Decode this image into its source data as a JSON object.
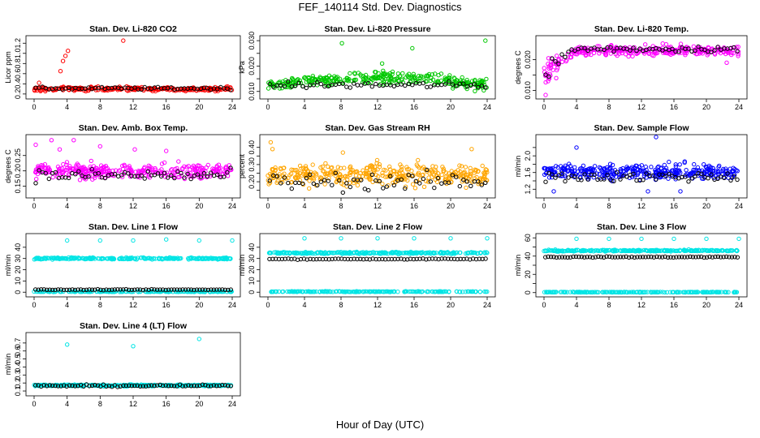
{
  "figure": {
    "title": "FEF_140114  Std. Dev. Diagnostics",
    "xlabel": "Hour of Day (UTC)"
  },
  "chart_data": [
    {
      "type": "scatter",
      "title": "Stan. Dev. Li-820 CO2",
      "ylabel": "Licor ppm",
      "xlim": [
        0,
        24
      ],
      "xticks": [
        0,
        4,
        8,
        12,
        16,
        20,
        24
      ],
      "ylim": [
        0.15,
        1.3
      ],
      "yticks": [
        0.2,
        0.4,
        0.6,
        0.8,
        1.0,
        1.2
      ],
      "ytick_labels": [
        "0.2",
        "0.4",
        "0.6",
        "0.8",
        "1.0",
        "1.2"
      ],
      "series": [
        {
          "color": "#ff0000",
          "baseline": 0.3,
          "spread": 0.04,
          "count": 260,
          "outliers": [
            [
              3.2,
              0.65
            ],
            [
              3.5,
              0.85
            ],
            [
              3.8,
              0.95
            ],
            [
              4.1,
              1.05
            ],
            [
              10.8,
              1.25
            ],
            [
              0.6,
              0.42
            ]
          ]
        },
        {
          "color": "#000000",
          "baseline": 0.31,
          "spread": 0.025,
          "count": 60,
          "outliers": []
        }
      ]
    },
    {
      "type": "scatter",
      "title": "Stan. Dev. Li-820 Pressure",
      "ylabel": "kPa",
      "xlim": [
        0,
        24
      ],
      "xticks": [
        0,
        4,
        8,
        12,
        16,
        20,
        24
      ],
      "ylim": [
        0.008,
        0.031
      ],
      "yticks": [
        0.01,
        0.015,
        0.02,
        0.025,
        0.03
      ],
      "ytick_labels": [
        "0.010",
        "",
        "0.020",
        "",
        "0.030"
      ],
      "series": [
        {
          "color": "#00c800",
          "baseline": 0.0125,
          "spread": 0.0022,
          "count": 320,
          "hump": 0.0035,
          "outliers": [
            [
              8.1,
              0.029
            ],
            [
              15.8,
              0.027
            ],
            [
              23.8,
              0.03
            ],
            [
              12.5,
              0.021
            ]
          ]
        },
        {
          "color": "#000000",
          "baseline": 0.0125,
          "spread": 0.0012,
          "count": 60,
          "outliers": []
        }
      ]
    },
    {
      "type": "scatter",
      "title": "Stan. Dev. Li-820 Temp.",
      "ylabel": "degrees C",
      "xlim": [
        0,
        24
      ],
      "xticks": [
        0,
        4,
        8,
        12,
        16,
        20,
        24
      ],
      "ylim": [
        0.008,
        0.027
      ],
      "yticks": [
        0.01,
        0.015,
        0.02
      ],
      "ytick_labels": [
        "0.010",
        "",
        "0.020"
      ],
      "series": [
        {
          "color": "#ff00ff",
          "baseline": 0.023,
          "spread": 0.0015,
          "count": 320,
          "rise": true,
          "outliers": [
            [
              0.2,
              0.0085
            ],
            [
              0.5,
              0.013
            ],
            [
              1.5,
              0.014
            ],
            [
              22.5,
              0.019
            ]
          ]
        },
        {
          "color": "#000000",
          "baseline": 0.0235,
          "spread": 0.001,
          "count": 60,
          "rise": true,
          "outliers": []
        }
      ]
    },
    {
      "type": "scatter",
      "title": "Stan. Dev. Amb. Box Temp.",
      "ylabel": "degrees C",
      "xlim": [
        0,
        24
      ],
      "xticks": [
        0,
        4,
        8,
        12,
        16,
        20,
        24
      ],
      "ylim": [
        0.12,
        0.31
      ],
      "yticks": [
        0.15,
        0.2,
        0.25
      ],
      "ytick_labels": [
        "0.15",
        "0.20",
        "0.25"
      ],
      "series": [
        {
          "color": "#ff00ff",
          "baseline": 0.2,
          "spread": 0.022,
          "count": 320,
          "outliers": [
            [
              0.2,
              0.285
            ],
            [
              2.1,
              0.3
            ],
            [
              3.1,
              0.27
            ],
            [
              4.8,
              0.3
            ],
            [
              8.0,
              0.28
            ],
            [
              12.2,
              0.27
            ],
            [
              16.0,
              0.265
            ]
          ]
        },
        {
          "color": "#000000",
          "baseline": 0.185,
          "spread": 0.02,
          "count": 60,
          "outliers": []
        }
      ]
    },
    {
      "type": "scatter",
      "title": "Stan. Dev. Gas Stream RH",
      "ylabel": "percent",
      "xlim": [
        0,
        24
      ],
      "xticks": [
        0,
        4,
        8,
        12,
        16,
        20,
        24
      ],
      "ylim": [
        0.12,
        0.46
      ],
      "yticks": [
        0.15,
        0.2,
        0.25,
        0.3,
        0.35,
        0.4
      ],
      "ytick_labels": [
        "",
        "0.20",
        "",
        "0.30",
        "",
        "0.40"
      ],
      "series": [
        {
          "color": "#ffa500",
          "baseline": 0.24,
          "spread": 0.06,
          "count": 380,
          "outliers": [
            [
              0.3,
              0.43
            ],
            [
              0.5,
              0.39
            ],
            [
              22.3,
              0.39
            ],
            [
              8.2,
              0.37
            ]
          ]
        },
        {
          "color": "#000000",
          "baseline": 0.2,
          "spread": 0.05,
          "count": 60,
          "outliers": []
        }
      ]
    },
    {
      "type": "scatter",
      "title": "Stan. Dev. Sample Flow",
      "ylabel": "ml/min",
      "xlim": [
        0,
        24
      ],
      "xticks": [
        0,
        4,
        8,
        12,
        16,
        20,
        24
      ],
      "ylim": [
        1.05,
        2.45
      ],
      "yticks": [
        1.2,
        1.4,
        1.6,
        1.8,
        2.0,
        2.2
      ],
      "ytick_labels": [
        "1.2",
        "",
        "1.6",
        "",
        "2.0",
        ""
      ],
      "series": [
        {
          "color": "#0000ff",
          "baseline": 1.62,
          "spread": 0.17,
          "count": 340,
          "outliers": [
            [
              4.0,
              2.2
            ],
            [
              13.8,
              2.45
            ],
            [
              1.2,
              1.15
            ],
            [
              12.8,
              1.15
            ],
            [
              16.8,
              1.15
            ]
          ]
        },
        {
          "color": "#000000",
          "baseline": 1.5,
          "spread": 0.12,
          "count": 60,
          "outliers": []
        }
      ]
    },
    {
      "type": "scatter",
      "title": "Stan. Dev. Line 1 Flow",
      "ylabel": "ml/min",
      "xlim": [
        0,
        24
      ],
      "xticks": [
        0,
        4,
        8,
        12,
        16,
        20,
        24
      ],
      "ylim": [
        -2,
        50
      ],
      "yticks": [
        0,
        10,
        20,
        30,
        40
      ],
      "ytick_labels": [
        "0",
        "10",
        "20",
        "30",
        "40"
      ],
      "series": [
        {
          "color": "#00e5e5",
          "baseline": 30,
          "spread": 0.8,
          "count": 260,
          "outliers": [
            [
              4.0,
              46
            ],
            [
              8.0,
              46
            ],
            [
              12.0,
              46
            ],
            [
              16.0,
              47
            ],
            [
              20.0,
              46
            ],
            [
              24.0,
              46
            ]
          ]
        },
        {
          "color": "#00e5e5",
          "baseline": 0.5,
          "spread": 0.3,
          "count": 200,
          "outliers": []
        },
        {
          "color": "#000000",
          "baseline": 2.2,
          "spread": 0.3,
          "count": 70,
          "outliers": []
        }
      ]
    },
    {
      "type": "scatter",
      "title": "Stan. Dev. Line 2 Flow",
      "ylabel": "ml/min",
      "xlim": [
        0,
        24
      ],
      "xticks": [
        0,
        4,
        8,
        12,
        16,
        20,
        24
      ],
      "ylim": [
        -2,
        50
      ],
      "yticks": [
        0,
        10,
        20,
        30,
        40
      ],
      "ytick_labels": [
        "0",
        "10",
        "20",
        "30",
        "40"
      ],
      "series": [
        {
          "color": "#00e5e5",
          "baseline": 35,
          "spread": 0.8,
          "count": 260,
          "outliers": [
            [
              4.0,
              48
            ],
            [
              8.0,
              48
            ],
            [
              12.0,
              48
            ],
            [
              16.0,
              48
            ],
            [
              20.0,
              48
            ],
            [
              24.0,
              48
            ]
          ]
        },
        {
          "color": "#00e5e5",
          "baseline": 0.5,
          "spread": 0.3,
          "count": 200,
          "outliers": []
        },
        {
          "color": "#000000",
          "baseline": 29.5,
          "spread": 0.4,
          "count": 70,
          "outliers": []
        }
      ]
    },
    {
      "type": "scatter",
      "title": "Stan. Dev. Line 3 Flow",
      "ylabel": "ml/min",
      "xlim": [
        0,
        24
      ],
      "xticks": [
        0,
        4,
        8,
        12,
        16,
        20,
        24
      ],
      "ylim": [
        -2,
        62
      ],
      "yticks": [
        0,
        10,
        20,
        30,
        40,
        50,
        60
      ],
      "ytick_labels": [
        "0",
        "",
        "20",
        "",
        "40",
        "",
        "60"
      ],
      "series": [
        {
          "color": "#00e5e5",
          "baseline": 46,
          "spread": 0.8,
          "count": 260,
          "outliers": [
            [
              4.0,
              59
            ],
            [
              8.0,
              59
            ],
            [
              12.0,
              59
            ],
            [
              16.0,
              59
            ],
            [
              20.0,
              59
            ],
            [
              24.0,
              59
            ]
          ]
        },
        {
          "color": "#00e5e5",
          "baseline": 0.5,
          "spread": 0.3,
          "count": 200,
          "outliers": []
        },
        {
          "color": "#000000",
          "baseline": 39,
          "spread": 0.5,
          "count": 70,
          "outliers": []
        }
      ]
    },
    {
      "type": "scatter",
      "title": "Stan. Dev. Line 4 (LT) Flow",
      "ylabel": "ml/min",
      "xlim": [
        0,
        24
      ],
      "xticks": [
        0,
        4,
        8,
        12,
        16,
        20,
        24
      ],
      "ylim": [
        0.07,
        0.8
      ],
      "yticks": [
        0.1,
        0.2,
        0.3,
        0.4,
        0.5,
        0.6,
        0.7
      ],
      "ytick_labels": [
        "0.1",
        "0.2",
        "0.3",
        "0.4",
        "0.5",
        "0.6",
        "0.7"
      ],
      "series": [
        {
          "color": "#00e5e5",
          "baseline": 0.17,
          "spread": 0.01,
          "count": 300,
          "outliers": [
            [
              4.0,
              0.68
            ],
            [
              12.0,
              0.66
            ],
            [
              20.0,
              0.75
            ]
          ]
        },
        {
          "color": "#000000",
          "baseline": 0.165,
          "spread": 0.012,
          "count": 70,
          "outliers": []
        }
      ]
    }
  ]
}
